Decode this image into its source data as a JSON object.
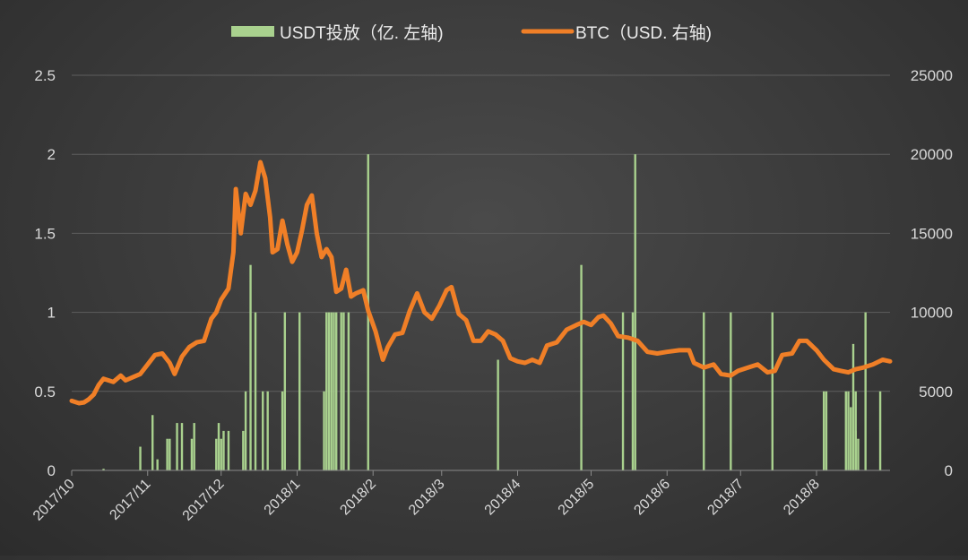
{
  "colors": {
    "usdt": "#a9d18e",
    "btc": "#f07f27"
  },
  "chart_data": {
    "type": "bar+line",
    "legend": [
      {
        "name": "USDT投放（亿. 左轴)",
        "series": "usdt"
      },
      {
        "name": "BTC（USD. 右轴)",
        "series": "btc"
      }
    ],
    "legend_position": "top-center",
    "grid": true,
    "x_labels": [
      "2017/10",
      "2017/11",
      "2017/12",
      "2018/1",
      "2018/2",
      "2018/3",
      "2018/4",
      "2018/5",
      "2018/6",
      "2018/7",
      "2018/8"
    ],
    "x_label_dates": [
      "2017-10-01",
      "2017-11-01",
      "2017-12-01",
      "2018-01-01",
      "2018-02-01",
      "2018-03-01",
      "2018-04-01",
      "2018-05-01",
      "2018-06-01",
      "2018-07-01",
      "2018-08-01"
    ],
    "x_range": [
      "2017-10-01",
      "2018-08-31"
    ],
    "y_left": {
      "ticks": [
        "0",
        "0.5",
        "1",
        "1.5",
        "2",
        "2.5"
      ],
      "range": [
        0,
        2.5
      ]
    },
    "y_right": {
      "ticks": [
        "0",
        "5000",
        "10000",
        "15000",
        "20000",
        "25000"
      ],
      "range": [
        0,
        25000
      ]
    },
    "usdt_bars": [
      [
        "2017-10-14",
        0.01
      ],
      [
        "2017-10-29",
        0.15
      ],
      [
        "2017-11-03",
        0.35
      ],
      [
        "2017-11-05",
        0.07
      ],
      [
        "2017-11-09",
        0.2
      ],
      [
        "2017-11-10",
        0.2
      ],
      [
        "2017-11-13",
        0.3
      ],
      [
        "2017-11-15",
        0.3
      ],
      [
        "2017-11-19",
        0.2
      ],
      [
        "2017-11-20",
        0.3
      ],
      [
        "2017-11-29",
        0.2
      ],
      [
        "2017-11-30",
        0.3
      ],
      [
        "2017-12-01",
        0.2
      ],
      [
        "2017-12-02",
        0.25
      ],
      [
        "2017-12-04",
        0.25
      ],
      [
        "2017-12-10",
        0.25
      ],
      [
        "2017-12-11",
        0.5
      ],
      [
        "2017-12-13",
        1.3
      ],
      [
        "2017-12-15",
        1.0
      ],
      [
        "2017-12-18",
        0.5
      ],
      [
        "2017-12-20",
        0.5
      ],
      [
        "2017-12-26",
        0.5
      ],
      [
        "2017-12-27",
        1.0
      ],
      [
        "2018-01-02",
        1.0
      ],
      [
        "2018-01-12",
        0.5
      ],
      [
        "2018-01-13",
        1.0
      ],
      [
        "2018-01-14",
        1.0
      ],
      [
        "2018-01-15",
        1.0
      ],
      [
        "2018-01-16",
        1.0
      ],
      [
        "2018-01-17",
        1.0
      ],
      [
        "2018-01-19",
        1.0
      ],
      [
        "2018-01-20",
        1.0
      ],
      [
        "2018-01-22",
        1.0
      ],
      [
        "2018-01-30",
        2.0
      ],
      [
        "2018-03-24",
        0.7
      ],
      [
        "2018-04-27",
        1.3
      ],
      [
        "2018-05-14",
        1.0
      ],
      [
        "2018-05-18",
        1.0
      ],
      [
        "2018-05-19",
        2.0
      ],
      [
        "2018-06-16",
        1.0
      ],
      [
        "2018-06-27",
        1.0
      ],
      [
        "2018-07-14",
        1.0
      ],
      [
        "2018-08-04",
        0.5
      ],
      [
        "2018-08-05",
        0.5
      ],
      [
        "2018-08-13",
        0.5
      ],
      [
        "2018-08-14",
        0.5
      ],
      [
        "2018-08-15",
        0.4
      ],
      [
        "2018-08-16",
        0.8
      ],
      [
        "2018-08-17",
        0.5
      ],
      [
        "2018-08-17",
        0.25
      ],
      [
        "2018-08-18",
        0.2
      ],
      [
        "2018-08-21",
        1.0
      ],
      [
        "2018-08-27",
        0.5
      ]
    ],
    "btc_series": [
      [
        "2017-10-01",
        4400
      ],
      [
        "2017-10-04",
        4250
      ],
      [
        "2017-10-06",
        4300
      ],
      [
        "2017-10-08",
        4500
      ],
      [
        "2017-10-10",
        4800
      ],
      [
        "2017-10-12",
        5400
      ],
      [
        "2017-10-14",
        5800
      ],
      [
        "2017-10-18",
        5600
      ],
      [
        "2017-10-21",
        6000
      ],
      [
        "2017-10-23",
        5700
      ],
      [
        "2017-10-26",
        5900
      ],
      [
        "2017-10-29",
        6100
      ],
      [
        "2017-11-01",
        6700
      ],
      [
        "2017-11-04",
        7300
      ],
      [
        "2017-11-07",
        7400
      ],
      [
        "2017-11-10",
        6800
      ],
      [
        "2017-11-12",
        6100
      ],
      [
        "2017-11-15",
        7200
      ],
      [
        "2017-11-18",
        7800
      ],
      [
        "2017-11-21",
        8100
      ],
      [
        "2017-11-24",
        8200
      ],
      [
        "2017-11-27",
        9600
      ],
      [
        "2017-11-29",
        10000
      ],
      [
        "2017-12-01",
        10800
      ],
      [
        "2017-12-04",
        11500
      ],
      [
        "2017-12-06",
        13800
      ],
      [
        "2017-12-07",
        17800
      ],
      [
        "2017-12-09",
        15000
      ],
      [
        "2017-12-11",
        17500
      ],
      [
        "2017-12-13",
        16800
      ],
      [
        "2017-12-15",
        17700
      ],
      [
        "2017-12-17",
        19500
      ],
      [
        "2017-12-19",
        18500
      ],
      [
        "2017-12-21",
        16000
      ],
      [
        "2017-12-22",
        13800
      ],
      [
        "2017-12-24",
        14000
      ],
      [
        "2017-12-26",
        15800
      ],
      [
        "2017-12-28",
        14300
      ],
      [
        "2017-12-30",
        13200
      ],
      [
        "2018-01-01",
        13800
      ],
      [
        "2018-01-03",
        15200
      ],
      [
        "2018-01-05",
        16800
      ],
      [
        "2018-01-07",
        17400
      ],
      [
        "2018-01-09",
        15000
      ],
      [
        "2018-01-11",
        13500
      ],
      [
        "2018-01-13",
        14000
      ],
      [
        "2018-01-15",
        13500
      ],
      [
        "2018-01-17",
        11300
      ],
      [
        "2018-01-19",
        11500
      ],
      [
        "2018-01-21",
        12700
      ],
      [
        "2018-01-23",
        11000
      ],
      [
        "2018-01-25",
        11200
      ],
      [
        "2018-01-28",
        11400
      ],
      [
        "2018-01-30",
        10100
      ],
      [
        "2018-02-02",
        8800
      ],
      [
        "2018-02-05",
        7000
      ],
      [
        "2018-02-07",
        7800
      ],
      [
        "2018-02-10",
        8600
      ],
      [
        "2018-02-13",
        8700
      ],
      [
        "2018-02-16",
        10100
      ],
      [
        "2018-02-19",
        11200
      ],
      [
        "2018-02-22",
        10000
      ],
      [
        "2018-02-25",
        9600
      ],
      [
        "2018-02-28",
        10400
      ],
      [
        "2018-03-03",
        11400
      ],
      [
        "2018-03-05",
        11600
      ],
      [
        "2018-03-08",
        9900
      ],
      [
        "2018-03-11",
        9500
      ],
      [
        "2018-03-14",
        8200
      ],
      [
        "2018-03-17",
        8200
      ],
      [
        "2018-03-20",
        8800
      ],
      [
        "2018-03-23",
        8600
      ],
      [
        "2018-03-26",
        8200
      ],
      [
        "2018-03-29",
        7100
      ],
      [
        "2018-04-01",
        6900
      ],
      [
        "2018-04-04",
        6800
      ],
      [
        "2018-04-07",
        7000
      ],
      [
        "2018-04-10",
        6800
      ],
      [
        "2018-04-13",
        7900
      ],
      [
        "2018-04-17",
        8100
      ],
      [
        "2018-04-21",
        8900
      ],
      [
        "2018-04-25",
        9200
      ],
      [
        "2018-04-28",
        9400
      ],
      [
        "2018-05-01",
        9200
      ],
      [
        "2018-05-04",
        9700
      ],
      [
        "2018-05-06",
        9800
      ],
      [
        "2018-05-09",
        9300
      ],
      [
        "2018-05-12",
        8500
      ],
      [
        "2018-05-16",
        8400
      ],
      [
        "2018-05-20",
        8200
      ],
      [
        "2018-05-24",
        7500
      ],
      [
        "2018-05-28",
        7400
      ],
      [
        "2018-06-01",
        7500
      ],
      [
        "2018-06-06",
        7600
      ],
      [
        "2018-06-10",
        7600
      ],
      [
        "2018-06-12",
        6800
      ],
      [
        "2018-06-16",
        6500
      ],
      [
        "2018-06-20",
        6700
      ],
      [
        "2018-06-23",
        6100
      ],
      [
        "2018-06-27",
        6000
      ],
      [
        "2018-06-30",
        6300
      ],
      [
        "2018-07-04",
        6500
      ],
      [
        "2018-07-08",
        6700
      ],
      [
        "2018-07-12",
        6200
      ],
      [
        "2018-07-15",
        6300
      ],
      [
        "2018-07-18",
        7300
      ],
      [
        "2018-07-22",
        7400
      ],
      [
        "2018-07-25",
        8200
      ],
      [
        "2018-07-28",
        8200
      ],
      [
        "2018-08-01",
        7600
      ],
      [
        "2018-08-04",
        7000
      ],
      [
        "2018-08-08",
        6400
      ],
      [
        "2018-08-11",
        6300
      ],
      [
        "2018-08-14",
        6200
      ],
      [
        "2018-08-17",
        6400
      ],
      [
        "2018-08-20",
        6500
      ],
      [
        "2018-08-24",
        6700
      ],
      [
        "2018-08-28",
        7000
      ],
      [
        "2018-08-31",
        6900
      ]
    ]
  }
}
